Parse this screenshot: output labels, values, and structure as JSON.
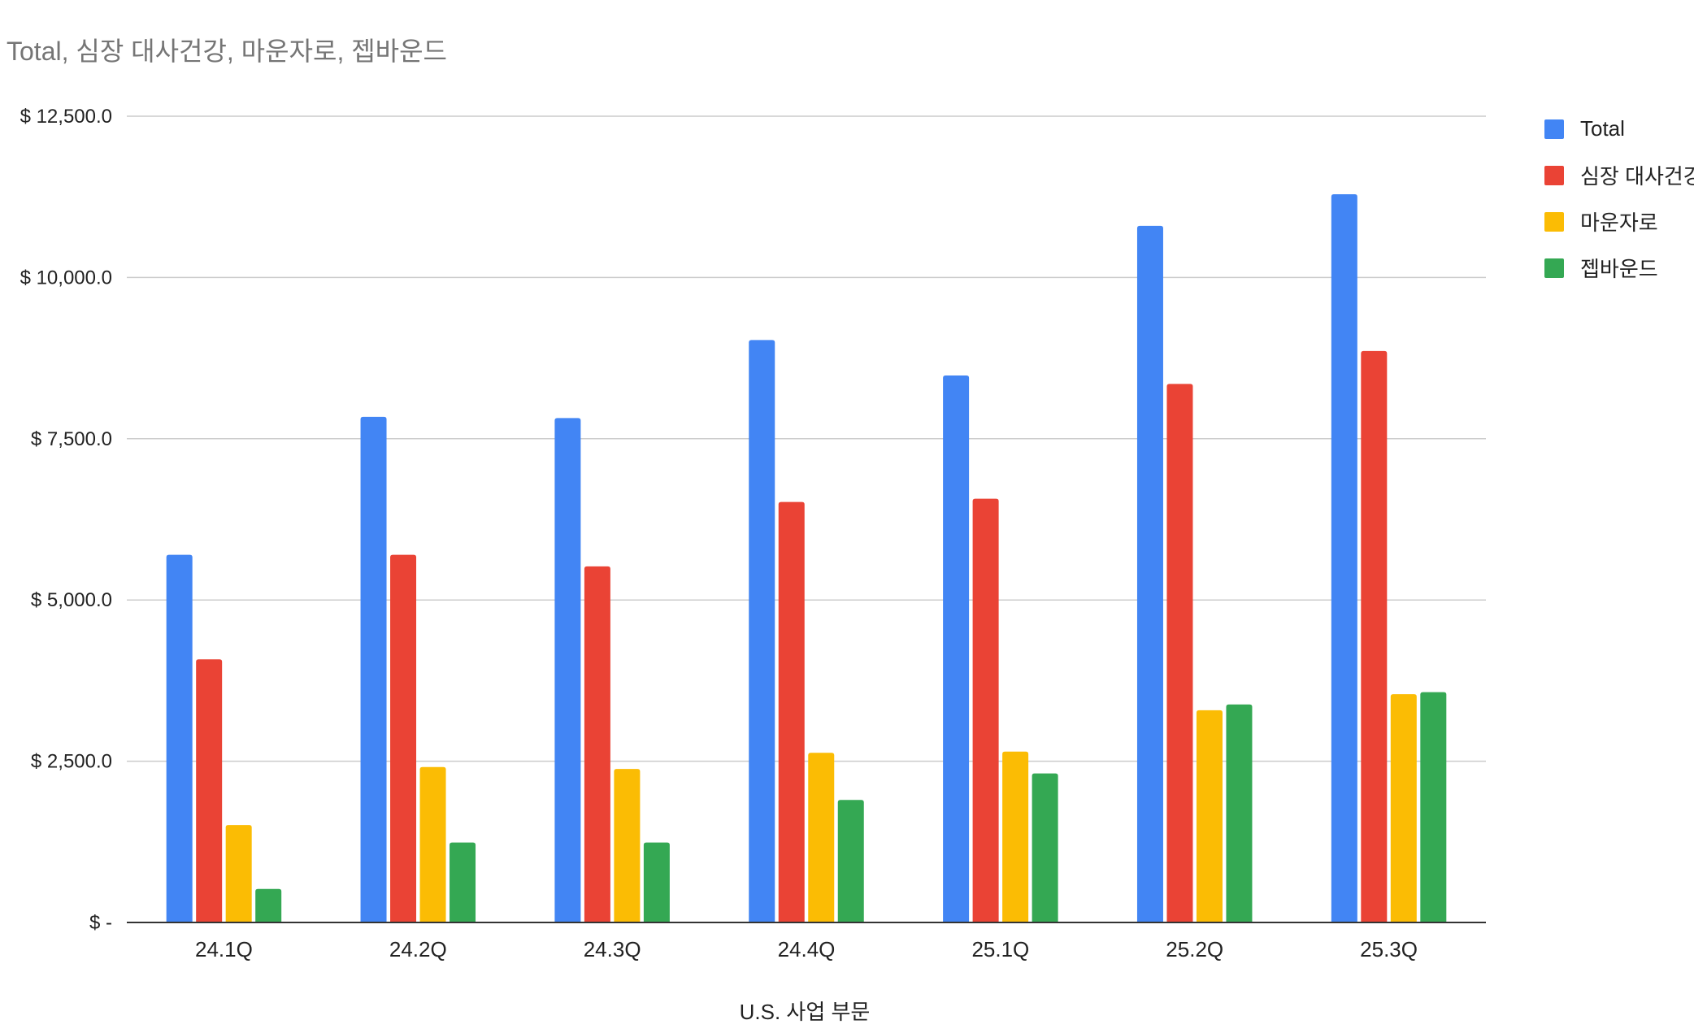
{
  "chart_data": {
    "type": "bar",
    "title": "Total, 심장 대사건강, 마운자로, 젭바운드",
    "xlabel": "U.S. 사업 부문",
    "ylabel": "",
    "ylim": [
      0,
      12500
    ],
    "yticks": [
      0,
      2500,
      5000,
      7500,
      10000,
      12500
    ],
    "ytick_labels": [
      "$ -",
      "$ 2,500.0",
      "$ 5,000.0",
      "$ 7,500.0",
      "$ 10,000.0",
      "$ 12,500.0"
    ],
    "categories": [
      "24.1Q",
      "24.2Q",
      "24.3Q",
      "24.4Q",
      "25.1Q",
      "25.2Q",
      "25.3Q"
    ],
    "grid": true,
    "legend_position": "right",
    "series": [
      {
        "name": "Total",
        "color": "#4285F4",
        "values": [
          5700,
          7840,
          7820,
          9030,
          8480,
          10800,
          11290
        ]
      },
      {
        "name": "심장 대사건강",
        "color": "#EA4335",
        "values": [
          4080,
          5700,
          5520,
          6520,
          6570,
          8350,
          8860
        ]
      },
      {
        "name": "마운자로",
        "color": "#FBBC04",
        "values": [
          1510,
          2410,
          2380,
          2630,
          2650,
          3290,
          3540
        ]
      },
      {
        "name": "젭바운드",
        "color": "#34A853",
        "values": [
          520,
          1240,
          1240,
          1900,
          2310,
          3380,
          3570
        ]
      }
    ]
  }
}
